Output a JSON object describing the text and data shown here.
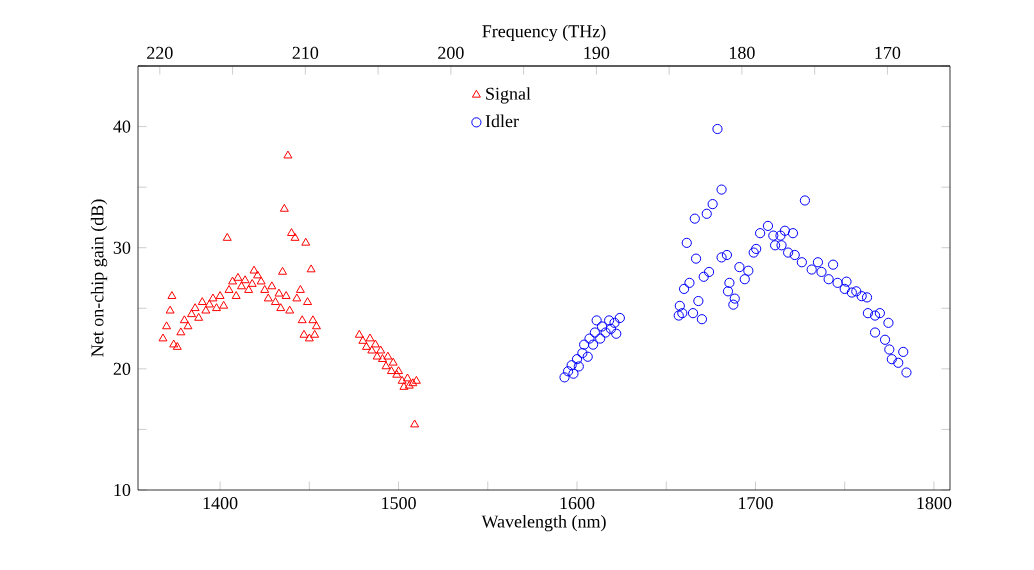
{
  "chart_data": {
    "type": "scatter",
    "xlabel": "Wavelength (nm)",
    "ylabel": "Net on-chip gain (dB)",
    "x2label": "Frequency (THz)",
    "xlim": [
      1354,
      1809
    ],
    "ylim": [
      10,
      45
    ],
    "x2lim": [
      221.5,
      165.7
    ],
    "xticks": [
      1400,
      {
        "value": 1450,
        "label": null
      },
      1500,
      {
        "value": 1550,
        "label": null
      },
      1600,
      {
        "value": 1650,
        "label": null
      },
      1700,
      {
        "value": 1750,
        "label": null
      },
      1800
    ],
    "yticks": [
      10,
      {
        "value": 15,
        "label": null
      },
      20,
      {
        "value": 25,
        "label": null
      },
      30,
      {
        "value": 35,
        "label": null
      },
      40,
      {
        "value": 45,
        "label": null
      }
    ],
    "x2ticks": [
      220,
      {
        "value": 215,
        "label": null
      },
      210,
      {
        "value": 205,
        "label": null
      },
      200,
      {
        "value": 195,
        "label": null
      },
      190,
      {
        "value": 185,
        "label": null
      },
      180,
      {
        "value": 175,
        "label": null
      },
      170
    ],
    "legend": "top",
    "grid": false,
    "series": [
      {
        "name": "Signal",
        "color": "#ff0000",
        "marker": "triangle",
        "x": [
          1368,
          1370,
          1372,
          1373,
          1374,
          1376,
          1378,
          1380,
          1382,
          1384,
          1386,
          1388,
          1390,
          1392,
          1394,
          1396,
          1398,
          1400,
          1402,
          1404,
          1405,
          1407,
          1409,
          1410,
          1412,
          1414,
          1416,
          1418,
          1419,
          1421,
          1423,
          1425,
          1427,
          1429,
          1431,
          1433,
          1434,
          1435,
          1436,
          1437,
          1438,
          1439,
          1440,
          1442,
          1443,
          1445,
          1446,
          1447,
          1448,
          1449,
          1450,
          1451,
          1452,
          1453,
          1454,
          1478,
          1480,
          1482,
          1484,
          1485,
          1487,
          1488,
          1490,
          1491,
          1493,
          1494,
          1496,
          1497,
          1499,
          1500,
          1502,
          1503,
          1505,
          1506,
          1508,
          1509,
          1510
        ],
        "values": [
          22.5,
          23.5,
          24.8,
          26.0,
          22.0,
          21.8,
          23.0,
          24.0,
          23.5,
          24.5,
          25.0,
          24.2,
          25.5,
          24.8,
          25.3,
          25.8,
          25.0,
          26.0,
          25.2,
          30.8,
          26.5,
          27.2,
          26.0,
          27.5,
          26.8,
          27.3,
          26.5,
          27.0,
          28.1,
          27.7,
          27.2,
          26.5,
          25.8,
          26.8,
          25.5,
          26.2,
          25.0,
          28.0,
          33.2,
          26.0,
          37.6,
          24.8,
          31.2,
          30.8,
          25.8,
          26.5,
          24.0,
          22.8,
          30.4,
          25.5,
          22.5,
          28.2,
          24.0,
          22.8,
          23.5,
          22.8,
          22.3,
          21.8,
          22.5,
          21.5,
          22.0,
          21.0,
          21.5,
          20.8,
          20.2,
          21.0,
          19.8,
          20.5,
          19.5,
          19.8,
          19.0,
          18.5,
          19.2,
          18.6,
          18.8,
          15.4,
          19.0
        ]
      },
      {
        "name": "Idler",
        "color": "#0000ff",
        "marker": "circle",
        "x": [
          1593,
          1595,
          1597,
          1598,
          1600,
          1601,
          1603,
          1604,
          1606,
          1607,
          1609,
          1610,
          1611,
          1613,
          1614,
          1616,
          1618,
          1619,
          1621,
          1622,
          1624,
          1657,
          1657.6,
          1659,
          1660,
          1661.5,
          1663,
          1665,
          1666,
          1666.7,
          1668,
          1670,
          1671,
          1672.7,
          1674,
          1676,
          1678.7,
          1681,
          1681,
          1684,
          1684.6,
          1685.4,
          1687.6,
          1688.4,
          1691,
          1694,
          1696,
          1699,
          1700.4,
          1702.6,
          1707,
          1710,
          1711,
          1714,
          1714.6,
          1716.5,
          1718.3,
          1721,
          1722,
          1726,
          1727.7,
          1731.5,
          1735,
          1737,
          1741,
          1743.5,
          1746,
          1750,
          1751,
          1754,
          1756.5,
          1759.5,
          1762.5,
          1763,
          1767,
          1767,
          1769.7,
          1772.6,
          1774.5,
          1775,
          1776.4,
          1780,
          1782.8,
          1784.6
        ],
        "values": [
          19.3,
          19.8,
          20.3,
          19.6,
          20.8,
          20.2,
          21.3,
          22.0,
          21.0,
          22.5,
          22.0,
          23.0,
          24.0,
          22.5,
          23.5,
          23.0,
          24.0,
          23.3,
          23.8,
          22.9,
          24.2,
          24.4,
          25.2,
          24.6,
          26.6,
          30.4,
          27.1,
          24.6,
          32.4,
          29.1,
          25.6,
          24.1,
          27.6,
          32.8,
          28.0,
          33.6,
          39.8,
          34.8,
          29.2,
          29.4,
          26.4,
          27.1,
          25.3,
          25.8,
          28.4,
          27.4,
          28.1,
          29.6,
          29.9,
          31.2,
          31.8,
          31.0,
          30.2,
          31.0,
          30.2,
          31.4,
          29.6,
          31.2,
          29.4,
          28.8,
          33.9,
          28.2,
          28.8,
          28.0,
          27.4,
          28.6,
          27.1,
          26.6,
          27.2,
          26.3,
          26.4,
          26.0,
          25.9,
          24.6,
          24.4,
          23.0,
          24.6,
          22.4,
          23.8,
          21.6,
          20.8,
          20.5,
          21.4,
          19.7
        ]
      }
    ]
  }
}
